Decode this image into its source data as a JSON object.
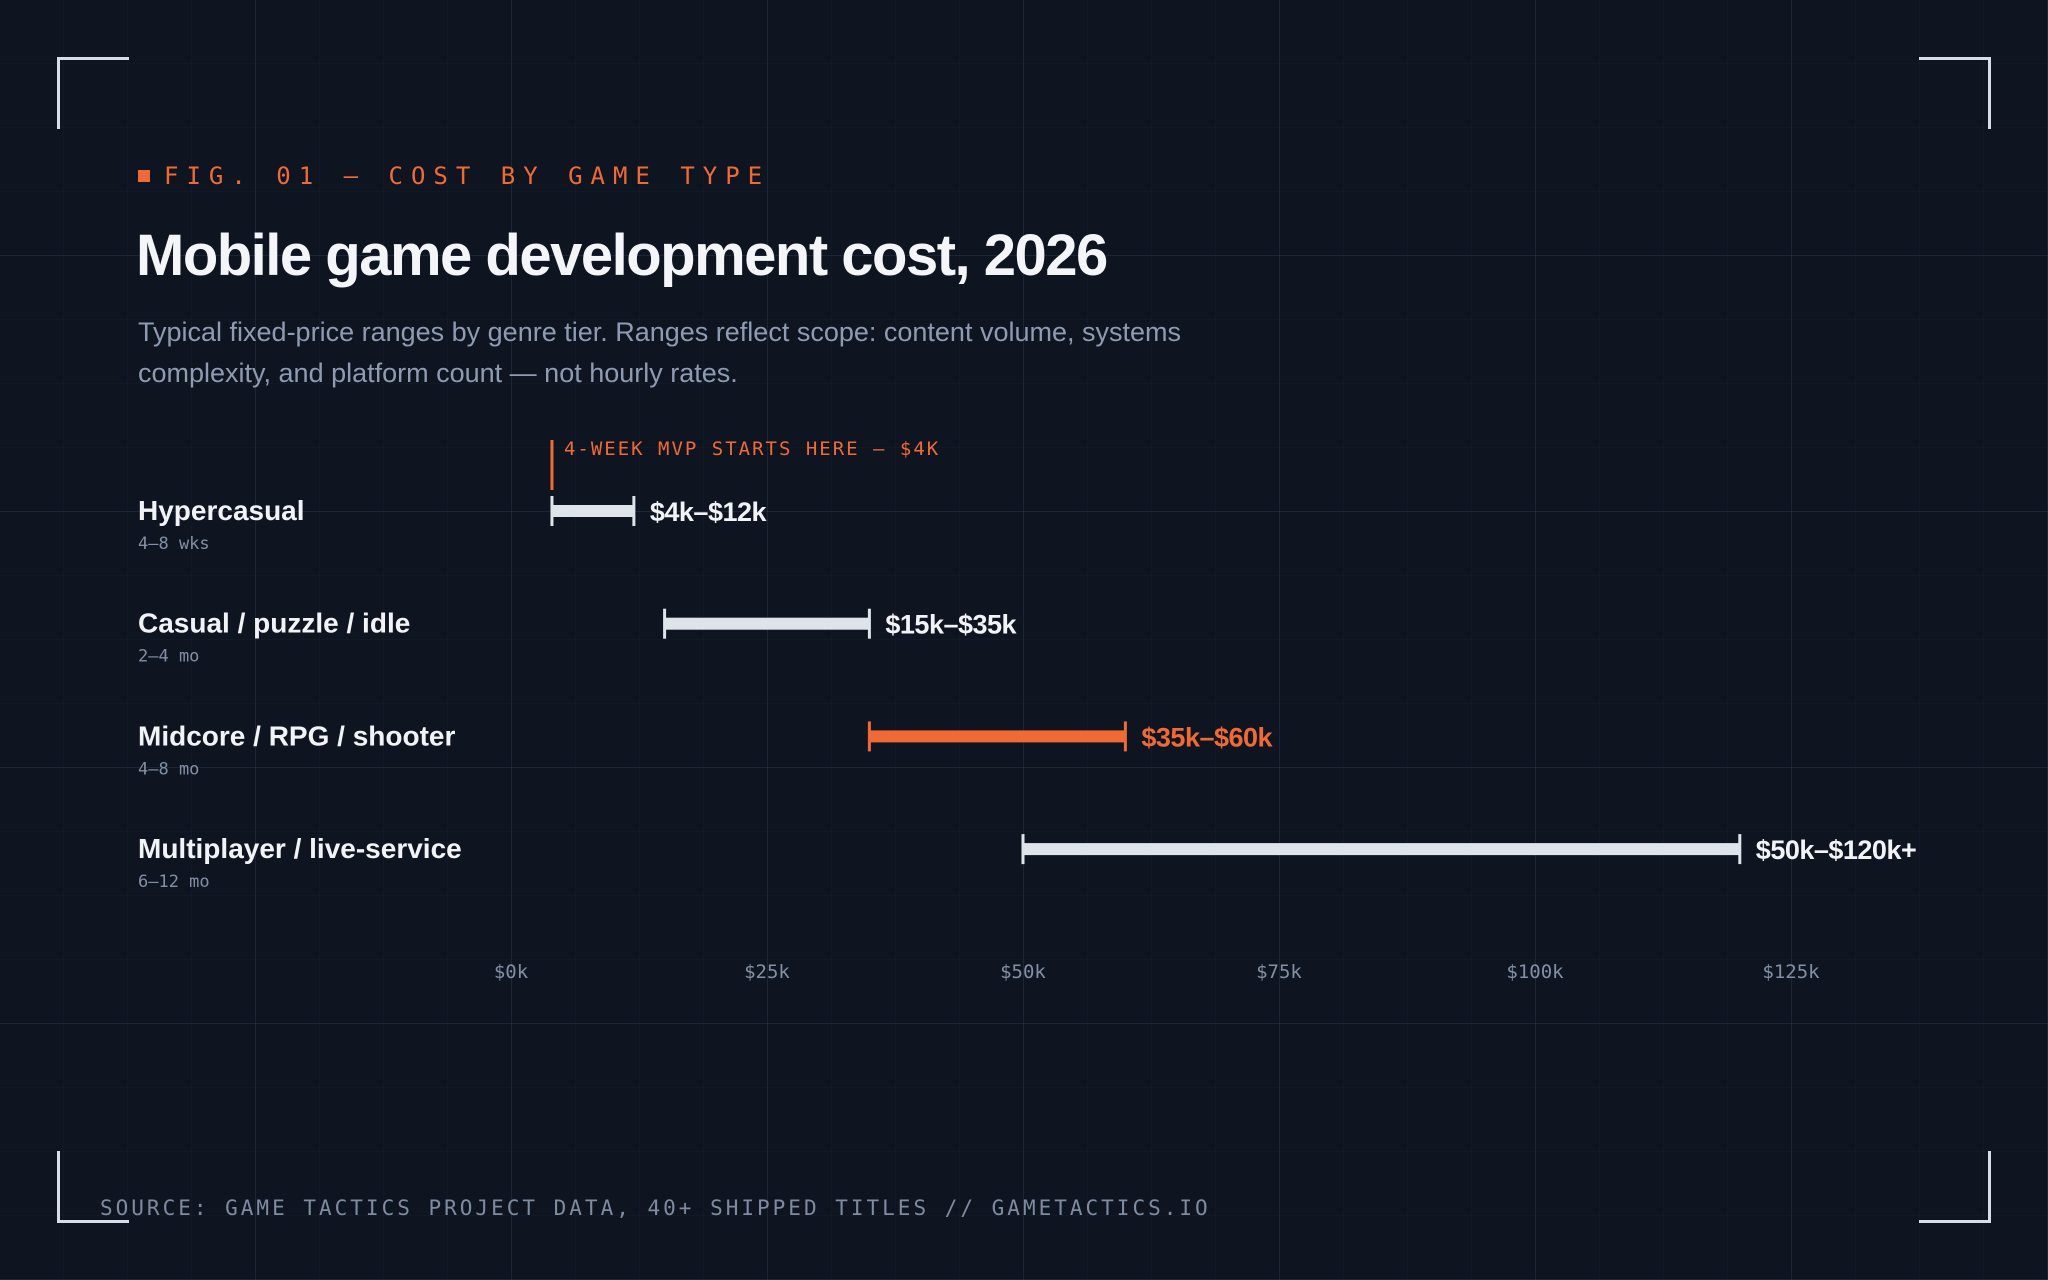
{
  "figure": {
    "label": "FIG. 01 — COST BY GAME TYPE",
    "title": "Mobile game development cost, 2026",
    "subtitle": "Typical fixed-price ranges by genre tier. Ranges reflect scope: content volume, systems complexity, and platform count — not hourly rates.",
    "source": "SOURCE: GAME TACTICS PROJECT DATA, 40+ SHIPPED TITLES // GAMETACTICS.IO"
  },
  "colors": {
    "accent": "#f06a35",
    "bar": "#dfe3ea",
    "background": "#0f1520",
    "muted": "#8e9bb2"
  },
  "chart_data": {
    "type": "range-bar",
    "units": "USD thousands",
    "xlim": [
      0,
      140
    ],
    "x_ticks": [
      {
        "value": 0,
        "label": "$0k"
      },
      {
        "value": 25,
        "label": "$25k"
      },
      {
        "value": 50,
        "label": "$50k"
      },
      {
        "value": 75,
        "label": "$75k"
      },
      {
        "value": 100,
        "label": "$100k"
      },
      {
        "value": 125,
        "label": "$125k"
      }
    ],
    "grid": true,
    "annotation": {
      "value": 4,
      "text": "4-WEEK MVP STARTS HERE — $4K"
    },
    "rows": [
      {
        "name": "Hypercasual",
        "duration": "4–8 wks",
        "low": 4,
        "high": 12,
        "label": "$4k–$12k",
        "highlight": false
      },
      {
        "name": "Casual / puzzle / idle",
        "duration": "2–4 mo",
        "low": 15,
        "high": 35,
        "label": "$15k–$35k",
        "highlight": false
      },
      {
        "name": "Midcore / RPG / shooter",
        "duration": "4–8 mo",
        "low": 35,
        "high": 60,
        "label": "$35k–$60k",
        "highlight": true
      },
      {
        "name": "Multiplayer / live-service",
        "duration": "6–12 mo",
        "low": 50,
        "high": 120,
        "label": "$50k–$120k+",
        "highlight": false
      }
    ]
  }
}
